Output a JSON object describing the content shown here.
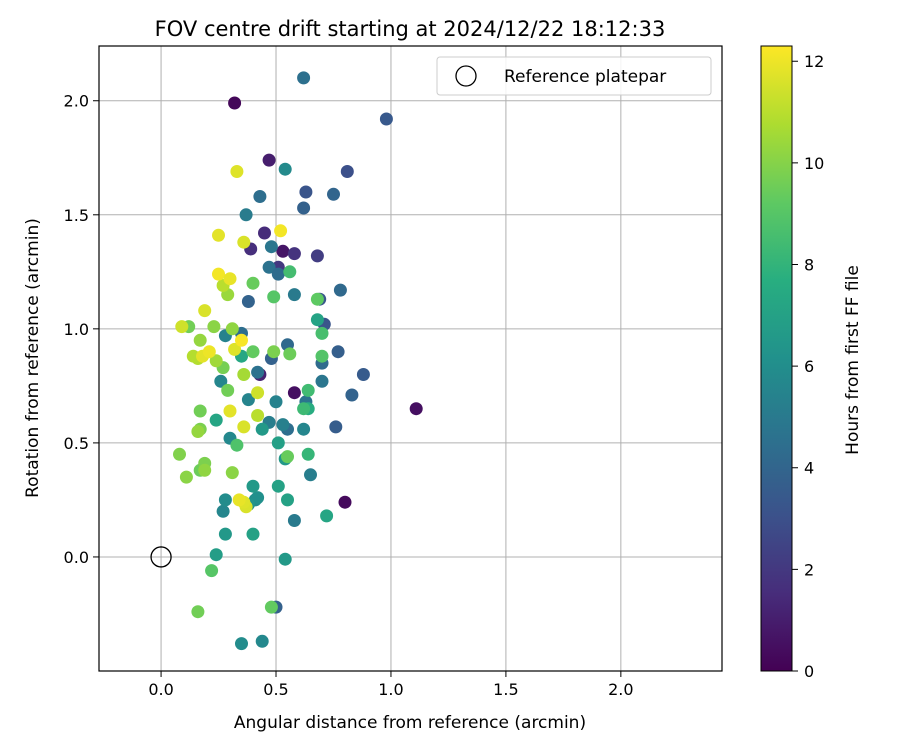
{
  "chart_data": {
    "type": "scatter",
    "title": "FOV centre drift starting at 2024/12/22 18:12:33",
    "xlabel": "Angular distance from reference (arcmin)",
    "ylabel": "Rotation from reference (arcmin)",
    "xlim": [
      -0.27,
      2.44
    ],
    "ylim": [
      -0.5,
      2.24
    ],
    "xticks": [
      0.0,
      0.5,
      1.0,
      1.5,
      2.0
    ],
    "xtick_labels": [
      "0.0",
      "0.5",
      "1.0",
      "1.5",
      "2.0"
    ],
    "yticks": [
      0.0,
      0.5,
      1.0,
      1.5,
      2.0
    ],
    "ytick_labels": [
      "0.0",
      "0.5",
      "1.0",
      "1.5",
      "2.0"
    ],
    "grid": true,
    "legend": {
      "position": "top-right",
      "entries": [
        "Reference platepar"
      ]
    },
    "reference_point": {
      "x": 0.0,
      "y": 0.0,
      "label": "Reference platepar"
    },
    "colorbar": {
      "label": "Hours from first FF file",
      "min": 0,
      "max": 12.3,
      "ticks": [
        0,
        2,
        4,
        6,
        8,
        10,
        12
      ],
      "tick_labels": [
        "0",
        "2",
        "4",
        "6",
        "8",
        "10",
        "12"
      ],
      "colormap": "viridis"
    },
    "points": [
      {
        "x": 0.32,
        "y": 1.99,
        "c": 0.2
      },
      {
        "x": 0.47,
        "y": 1.74,
        "c": 1.0
      },
      {
        "x": 1.11,
        "y": 0.65,
        "c": 0.5
      },
      {
        "x": 0.8,
        "y": 0.24,
        "c": 0.3
      },
      {
        "x": 0.58,
        "y": 0.72,
        "c": 0.5
      },
      {
        "x": 0.53,
        "y": 1.34,
        "c": 0.7
      },
      {
        "x": 0.43,
        "y": 0.8,
        "c": 1.2
      },
      {
        "x": 0.45,
        "y": 1.42,
        "c": 1.5
      },
      {
        "x": 0.51,
        "y": 1.27,
        "c": 2.0
      },
      {
        "x": 0.58,
        "y": 1.33,
        "c": 1.8
      },
      {
        "x": 0.39,
        "y": 1.35,
        "c": 1.6
      },
      {
        "x": 0.68,
        "y": 1.32,
        "c": 2.2
      },
      {
        "x": 0.98,
        "y": 1.92,
        "c": 3.4
      },
      {
        "x": 0.81,
        "y": 1.69,
        "c": 3.0
      },
      {
        "x": 0.63,
        "y": 1.6,
        "c": 3.2
      },
      {
        "x": 0.75,
        "y": 1.59,
        "c": 4.0
      },
      {
        "x": 0.62,
        "y": 1.53,
        "c": 3.8
      },
      {
        "x": 0.88,
        "y": 0.8,
        "c": 3.5
      },
      {
        "x": 0.83,
        "y": 0.71,
        "c": 3.9
      },
      {
        "x": 0.76,
        "y": 0.57,
        "c": 3.6
      },
      {
        "x": 0.77,
        "y": 0.9,
        "c": 3.7
      },
      {
        "x": 0.71,
        "y": 1.02,
        "c": 3.2
      },
      {
        "x": 0.69,
        "y": 1.13,
        "c": 3.3
      },
      {
        "x": 0.78,
        "y": 1.17,
        "c": 4.2
      },
      {
        "x": 0.5,
        "y": -0.22,
        "c": 3.8
      },
      {
        "x": 0.43,
        "y": 1.58,
        "c": 4.4
      },
      {
        "x": 0.62,
        "y": 2.1,
        "c": 4.5
      },
      {
        "x": 0.37,
        "y": 1.5,
        "c": 5.1
      },
      {
        "x": 0.48,
        "y": 1.36,
        "c": 4.8
      },
      {
        "x": 0.47,
        "y": 1.27,
        "c": 4.6
      },
      {
        "x": 0.51,
        "y": 1.24,
        "c": 4.3
      },
      {
        "x": 0.58,
        "y": 1.15,
        "c": 5.0
      },
      {
        "x": 0.38,
        "y": 1.12,
        "c": 3.9
      },
      {
        "x": 0.35,
        "y": 0.98,
        "c": 4.4
      },
      {
        "x": 0.55,
        "y": 0.93,
        "c": 4.2
      },
      {
        "x": 0.48,
        "y": 0.87,
        "c": 3.8
      },
      {
        "x": 0.42,
        "y": 0.81,
        "c": 4.6
      },
      {
        "x": 0.7,
        "y": 0.85,
        "c": 4.3
      },
      {
        "x": 0.7,
        "y": 0.77,
        "c": 4.8
      },
      {
        "x": 0.63,
        "y": 0.68,
        "c": 4.7
      },
      {
        "x": 0.55,
        "y": 0.56,
        "c": 4.4
      },
      {
        "x": 0.53,
        "y": 0.58,
        "c": 5.3
      },
      {
        "x": 0.62,
        "y": 0.56,
        "c": 5.6
      },
      {
        "x": 0.65,
        "y": 0.36,
        "c": 5.2
      },
      {
        "x": 0.58,
        "y": 0.16,
        "c": 5.0
      },
      {
        "x": 0.28,
        "y": 0.97,
        "c": 5.4
      },
      {
        "x": 0.26,
        "y": 0.77,
        "c": 5.6
      },
      {
        "x": 0.38,
        "y": 0.69,
        "c": 5.5
      },
      {
        "x": 0.5,
        "y": 0.68,
        "c": 5.4
      },
      {
        "x": 0.47,
        "y": 0.59,
        "c": 5.2
      },
      {
        "x": 0.3,
        "y": 0.52,
        "c": 5.7
      },
      {
        "x": 0.27,
        "y": 0.2,
        "c": 5.6
      },
      {
        "x": 0.28,
        "y": 0.25,
        "c": 5.9
      },
      {
        "x": 0.41,
        "y": 0.25,
        "c": 5.8
      },
      {
        "x": 0.42,
        "y": 0.26,
        "c": 6.1
      },
      {
        "x": 0.38,
        "y": 0.23,
        "c": 6.3
      },
      {
        "x": 0.44,
        "y": -0.37,
        "c": 5.7
      },
      {
        "x": 0.35,
        "y": -0.38,
        "c": 5.9
      },
      {
        "x": 0.54,
        "y": 1.7,
        "c": 5.8
      },
      {
        "x": 0.44,
        "y": 0.56,
        "c": 6.6
      },
      {
        "x": 0.51,
        "y": 0.5,
        "c": 6.9
      },
      {
        "x": 0.54,
        "y": 0.43,
        "c": 6.5
      },
      {
        "x": 0.4,
        "y": 0.31,
        "c": 6.6
      },
      {
        "x": 0.51,
        "y": 0.31,
        "c": 7.0
      },
      {
        "x": 0.55,
        "y": 0.25,
        "c": 7.0
      },
      {
        "x": 0.72,
        "y": 0.18,
        "c": 7.2
      },
      {
        "x": 0.28,
        "y": 0.1,
        "c": 6.5
      },
      {
        "x": 0.4,
        "y": 0.1,
        "c": 7.0
      },
      {
        "x": 0.24,
        "y": 0.01,
        "c": 6.8
      },
      {
        "x": 0.54,
        "y": -0.01,
        "c": 6.6
      },
      {
        "x": 0.24,
        "y": 0.6,
        "c": 7.2
      },
      {
        "x": 0.35,
        "y": 0.88,
        "c": 7.3
      },
      {
        "x": 0.68,
        "y": 1.04,
        "c": 7.1
      },
      {
        "x": 0.64,
        "y": 0.65,
        "c": 7.6
      },
      {
        "x": 0.62,
        "y": 0.65,
        "c": 8.3
      },
      {
        "x": 0.64,
        "y": 0.73,
        "c": 8.4
      },
      {
        "x": 0.64,
        "y": 0.45,
        "c": 8.1
      },
      {
        "x": 0.56,
        "y": 1.25,
        "c": 8.5
      },
      {
        "x": 0.7,
        "y": 0.98,
        "c": 8.6
      },
      {
        "x": 0.7,
        "y": 0.88,
        "c": 8.9
      },
      {
        "x": 0.68,
        "y": 1.13,
        "c": 9.2
      },
      {
        "x": 0.49,
        "y": 1.14,
        "c": 9.0
      },
      {
        "x": 0.4,
        "y": 1.2,
        "c": 9.4
      },
      {
        "x": 0.33,
        "y": 0.49,
        "c": 8.8
      },
      {
        "x": 0.29,
        "y": 0.73,
        "c": 9.6
      },
      {
        "x": 0.27,
        "y": 0.83,
        "c": 9.7
      },
      {
        "x": 0.4,
        "y": 0.9,
        "c": 9.3
      },
      {
        "x": 0.49,
        "y": 0.9,
        "c": 9.8
      },
      {
        "x": 0.56,
        "y": 0.89,
        "c": 9.5
      },
      {
        "x": 0.55,
        "y": 0.44,
        "c": 9.4
      },
      {
        "x": 0.48,
        "y": -0.22,
        "c": 9.3
      },
      {
        "x": 0.16,
        "y": -0.24,
        "c": 9.6
      },
      {
        "x": 0.22,
        "y": -0.06,
        "c": 9.0
      },
      {
        "x": 0.17,
        "y": 0.64,
        "c": 9.6
      },
      {
        "x": 0.17,
        "y": 0.56,
        "c": 9.8
      },
      {
        "x": 0.12,
        "y": 1.01,
        "c": 9.6
      },
      {
        "x": 0.17,
        "y": 0.38,
        "c": 9.5
      },
      {
        "x": 0.19,
        "y": 0.41,
        "c": 9.8
      },
      {
        "x": 0.08,
        "y": 0.45,
        "c": 9.9
      },
      {
        "x": 0.11,
        "y": 0.35,
        "c": 10.1
      },
      {
        "x": 0.19,
        "y": 0.38,
        "c": 10.2
      },
      {
        "x": 0.31,
        "y": 0.37,
        "c": 10.1
      },
      {
        "x": 0.29,
        "y": 1.15,
        "c": 10.4
      },
      {
        "x": 0.23,
        "y": 1.01,
        "c": 10.1
      },
      {
        "x": 0.31,
        "y": 1.0,
        "c": 10.2
      },
      {
        "x": 0.17,
        "y": 0.95,
        "c": 10.3
      },
      {
        "x": 0.24,
        "y": 0.86,
        "c": 10.5
      },
      {
        "x": 0.36,
        "y": 0.8,
        "c": 10.6
      },
      {
        "x": 0.16,
        "y": 0.87,
        "c": 10.9
      },
      {
        "x": 0.16,
        "y": 0.55,
        "c": 10.3
      },
      {
        "x": 0.14,
        "y": 0.88,
        "c": 10.9
      },
      {
        "x": 0.27,
        "y": 1.19,
        "c": 11.0
      },
      {
        "x": 0.42,
        "y": 0.62,
        "c": 11.0
      },
      {
        "x": 0.42,
        "y": 0.72,
        "c": 11.4
      },
      {
        "x": 0.36,
        "y": 0.57,
        "c": 11.6
      },
      {
        "x": 0.3,
        "y": 0.64,
        "c": 11.8
      },
      {
        "x": 0.37,
        "y": 0.22,
        "c": 11.6
      },
      {
        "x": 0.36,
        "y": 0.24,
        "c": 11.7
      },
      {
        "x": 0.34,
        "y": 0.25,
        "c": 11.9
      },
      {
        "x": 0.09,
        "y": 1.01,
        "c": 11.4
      },
      {
        "x": 0.19,
        "y": 1.08,
        "c": 11.6
      },
      {
        "x": 0.18,
        "y": 0.88,
        "c": 11.8
      },
      {
        "x": 0.21,
        "y": 0.9,
        "c": 12.0
      },
      {
        "x": 0.32,
        "y": 0.91,
        "c": 11.7
      },
      {
        "x": 0.35,
        "y": 0.95,
        "c": 12.2
      },
      {
        "x": 0.25,
        "y": 1.24,
        "c": 12.1
      },
      {
        "x": 0.3,
        "y": 1.22,
        "c": 11.9
      },
      {
        "x": 0.25,
        "y": 1.41,
        "c": 11.8
      },
      {
        "x": 0.36,
        "y": 1.38,
        "c": 11.6
      },
      {
        "x": 0.33,
        "y": 1.69,
        "c": 11.7
      },
      {
        "x": 0.52,
        "y": 1.43,
        "c": 12.1
      }
    ]
  }
}
